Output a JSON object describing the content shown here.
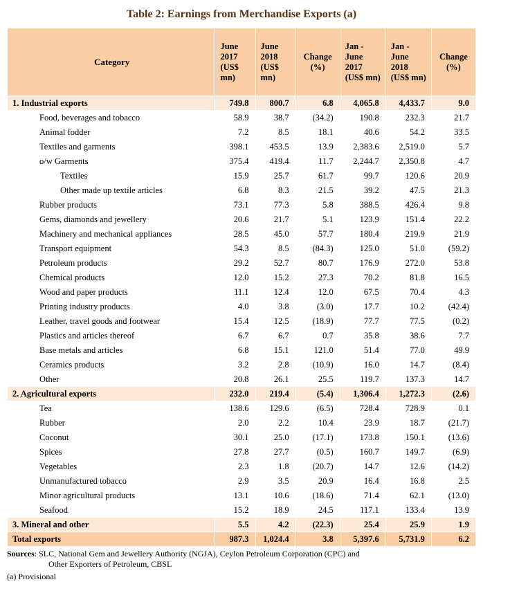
{
  "title": "Table 2: Earnings from Merchandise Exports (a)",
  "table": {
    "headers": [
      "Category",
      "June 2017 (US$ mn)",
      "June 2018 (US$ mn)",
      "Change (%)",
      "Jan - June 2017 (US$ mn)",
      "Jan - June 2018 (US$ mn)",
      "Change (%)"
    ],
    "rows": [
      {
        "label": "1. Industrial exports",
        "level": 0,
        "style": "section",
        "values": [
          "749.8",
          "800.7",
          "6.8",
          "4,065.8",
          "4,433.7",
          "9.0"
        ]
      },
      {
        "label": "Food, beverages and tobacco",
        "level": 1,
        "style": "normal",
        "values": [
          "58.9",
          "38.7",
          "(34.2)",
          "190.8",
          "232.3",
          "21.7"
        ]
      },
      {
        "label": "Animal fodder",
        "level": 1,
        "style": "normal",
        "values": [
          "7.2",
          "8.5",
          "18.1",
          "40.6",
          "54.2",
          "33.5"
        ]
      },
      {
        "label": "Textiles and garments",
        "level": 1,
        "style": "normal",
        "values": [
          "398.1",
          "453.5",
          "13.9",
          "2,383.6",
          "2,519.0",
          "5.7"
        ]
      },
      {
        "label": "o/w Garments",
        "level": 1,
        "style": "normal",
        "values": [
          "375.4",
          "419.4",
          "11.7",
          "2,244.7",
          "2,350.8",
          "4.7"
        ]
      },
      {
        "label": "Textiles",
        "level": 2,
        "style": "normal",
        "values": [
          "15.9",
          "25.7",
          "61.7",
          "99.7",
          "120.6",
          "20.9"
        ]
      },
      {
        "label": "Other made up textile articles",
        "level": 2,
        "style": "normal",
        "values": [
          "6.8",
          "8.3",
          "21.5",
          "39.2",
          "47.5",
          "21.3"
        ]
      },
      {
        "label": "Rubber products",
        "level": 1,
        "style": "normal",
        "values": [
          "73.1",
          "77.3",
          "5.8",
          "388.5",
          "426.4",
          "9.8"
        ]
      },
      {
        "label": "Gems, diamonds and jewellery",
        "level": 1,
        "style": "normal",
        "values": [
          "20.6",
          "21.7",
          "5.1",
          "123.9",
          "151.4",
          "22.2"
        ]
      },
      {
        "label": "Machinery and mechanical appliances",
        "level": 1,
        "style": "normal",
        "values": [
          "28.5",
          "45.0",
          "57.7",
          "180.4",
          "219.9",
          "21.9"
        ]
      },
      {
        "label": "Transport equipment",
        "level": 1,
        "style": "normal",
        "values": [
          "54.3",
          "8.5",
          "(84.3)",
          "125.0",
          "51.0",
          "(59.2)"
        ]
      },
      {
        "label": "Petroleum products",
        "level": 1,
        "style": "normal",
        "values": [
          "29.2",
          "52.7",
          "80.7",
          "176.9",
          "272.0",
          "53.8"
        ]
      },
      {
        "label": "Chemical products",
        "level": 1,
        "style": "normal",
        "values": [
          "12.0",
          "15.2",
          "27.3",
          "70.2",
          "81.8",
          "16.5"
        ]
      },
      {
        "label": "Wood and paper products",
        "level": 1,
        "style": "normal",
        "values": [
          "11.1",
          "12.4",
          "12.0",
          "67.5",
          "70.4",
          "4.3"
        ]
      },
      {
        "label": "Printing industry products",
        "level": 1,
        "style": "normal",
        "values": [
          "4.0",
          "3.8",
          "(3.0)",
          "17.7",
          "10.2",
          "(42.4)"
        ]
      },
      {
        "label": "Leather, travel goods and footwear",
        "level": 1,
        "style": "normal",
        "values": [
          "15.4",
          "12.5",
          "(18.9)",
          "77.7",
          "77.5",
          "(0.2)"
        ]
      },
      {
        "label": "Plastics and articles thereof",
        "level": 1,
        "style": "normal",
        "values": [
          "6.7",
          "6.7",
          "0.7",
          "35.8",
          "38.6",
          "7.7"
        ]
      },
      {
        "label": "Base metals and articles",
        "level": 1,
        "style": "normal",
        "values": [
          "6.8",
          "15.1",
          "121.0",
          "51.4",
          "77.0",
          "49.9"
        ]
      },
      {
        "label": "Ceramics products",
        "level": 1,
        "style": "normal",
        "values": [
          "3.2",
          "2.8",
          "(10.9)",
          "16.0",
          "14.7",
          "(8.4)"
        ]
      },
      {
        "label": "Other",
        "level": 1,
        "style": "normal",
        "values": [
          "20.8",
          "26.1",
          "25.5",
          "119.7",
          "137.3",
          "14.7"
        ]
      },
      {
        "label": "2. Agricultural exports",
        "level": 0,
        "style": "section",
        "values": [
          "232.0",
          "219.4",
          "(5.4)",
          "1,306.4",
          "1,272.3",
          "(2.6)"
        ]
      },
      {
        "label": "Tea",
        "level": 1,
        "style": "normal",
        "values": [
          "138.6",
          "129.6",
          "(6.5)",
          "728.4",
          "728.9",
          "0.1"
        ]
      },
      {
        "label": "Rubber",
        "level": 1,
        "style": "normal",
        "values": [
          "2.0",
          "2.2",
          "10.4",
          "23.9",
          "18.7",
          "(21.7)"
        ]
      },
      {
        "label": "Coconut",
        "level": 1,
        "style": "normal",
        "values": [
          "30.1",
          "25.0",
          "(17.1)",
          "173.8",
          "150.1",
          "(13.6)"
        ]
      },
      {
        "label": "Spices",
        "level": 1,
        "style": "normal",
        "values": [
          "27.8",
          "27.7",
          "(0.5)",
          "160.7",
          "149.7",
          "(6.9)"
        ]
      },
      {
        "label": "Vegetables",
        "level": 1,
        "style": "normal",
        "values": [
          "2.3",
          "1.8",
          "(20.7)",
          "14.7",
          "12.6",
          "(14.2)"
        ]
      },
      {
        "label": "Unmanufactured tobacco",
        "level": 1,
        "style": "normal",
        "values": [
          "2.9",
          "3.5",
          "20.9",
          "16.4",
          "16.8",
          "2.5"
        ]
      },
      {
        "label": "Minor agricultural products",
        "level": 1,
        "style": "normal",
        "values": [
          "13.1",
          "10.6",
          "(18.6)",
          "71.4",
          "62.1",
          "(13.0)"
        ]
      },
      {
        "label": "Seafood",
        "level": 1,
        "style": "normal",
        "values": [
          "15.2",
          "18.9",
          "24.5",
          "117.1",
          "133.4",
          "13.9"
        ]
      },
      {
        "label": "3. Mineral and other",
        "level": 0,
        "style": "section",
        "values": [
          "5.5",
          "4.2",
          "(22.3)",
          "25.4",
          "25.9",
          "1.9"
        ]
      },
      {
        "label": "Total exports",
        "level": 0,
        "style": "total",
        "values": [
          "987.3",
          "1,024.4",
          "3.8",
          "5,397.6",
          "5,731.9",
          "6.2"
        ]
      }
    ]
  },
  "footnotes": {
    "sources_label": "Sources",
    "sources_text": ":  SLC, National Gem and Jewellery Authority (NGJA), Ceylon Petroleum Corporation (CPC) and",
    "sources_text2": "Other Exporters of Petroleum, CBSL",
    "provisional": "(a) Provisional"
  }
}
